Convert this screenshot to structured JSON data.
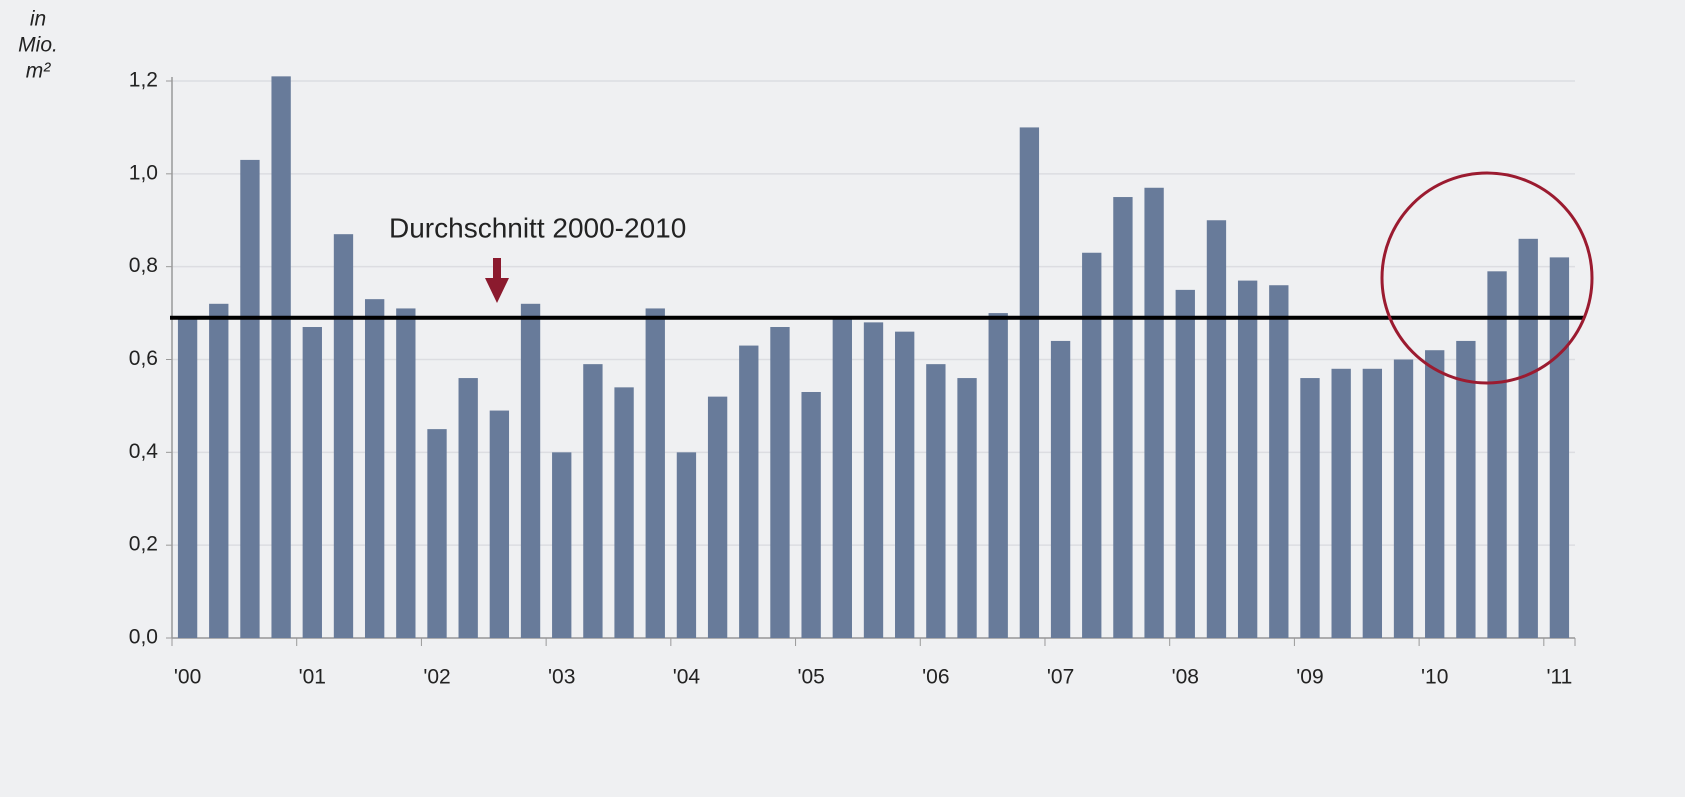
{
  "chart_data": {
    "type": "bar",
    "y_label_lines": [
      "in",
      "Mio.",
      "m²"
    ],
    "annotation": "Durchschnitt 2000-2010",
    "average": 0.69,
    "categories": [
      "'00",
      null,
      null,
      null,
      "'01",
      null,
      null,
      null,
      "'02",
      null,
      null,
      null,
      "'03",
      null,
      null,
      null,
      "'04",
      null,
      null,
      null,
      "'05",
      null,
      null,
      null,
      "'06",
      null,
      null,
      null,
      "'07",
      null,
      null,
      null,
      "'08",
      null,
      null,
      null,
      "'09",
      null,
      null,
      null,
      "'10",
      null,
      null,
      null,
      "'11"
    ],
    "values": [
      0.69,
      0.72,
      1.03,
      1.21,
      0.67,
      0.87,
      0.73,
      0.71,
      0.45,
      0.56,
      0.49,
      0.72,
      0.4,
      0.59,
      0.54,
      0.71,
      0.4,
      0.52,
      0.63,
      0.67,
      0.53,
      0.69,
      0.68,
      0.66,
      0.59,
      0.56,
      0.7,
      1.1,
      0.64,
      0.83,
      0.95,
      0.97,
      0.75,
      0.9,
      0.77,
      0.76,
      0.56,
      0.58,
      0.58,
      0.6,
      0.62,
      0.64,
      0.79,
      0.86,
      0.82
    ],
    "color": "#687b9a",
    "ylim": [
      0,
      1.2
    ],
    "yticks": [
      {
        "value": 0,
        "label": "0,0"
      },
      {
        "value": 0.2,
        "label": "0,2"
      },
      {
        "value": 0.4,
        "label": "0,4"
      },
      {
        "value": 0.6,
        "label": "0,6"
      },
      {
        "value": 0.8,
        "label": "0,8"
      },
      {
        "value": 1.0,
        "label": "1,0"
      },
      {
        "value": 1.2,
        "label": "1,2"
      }
    ],
    "grid": true
  }
}
